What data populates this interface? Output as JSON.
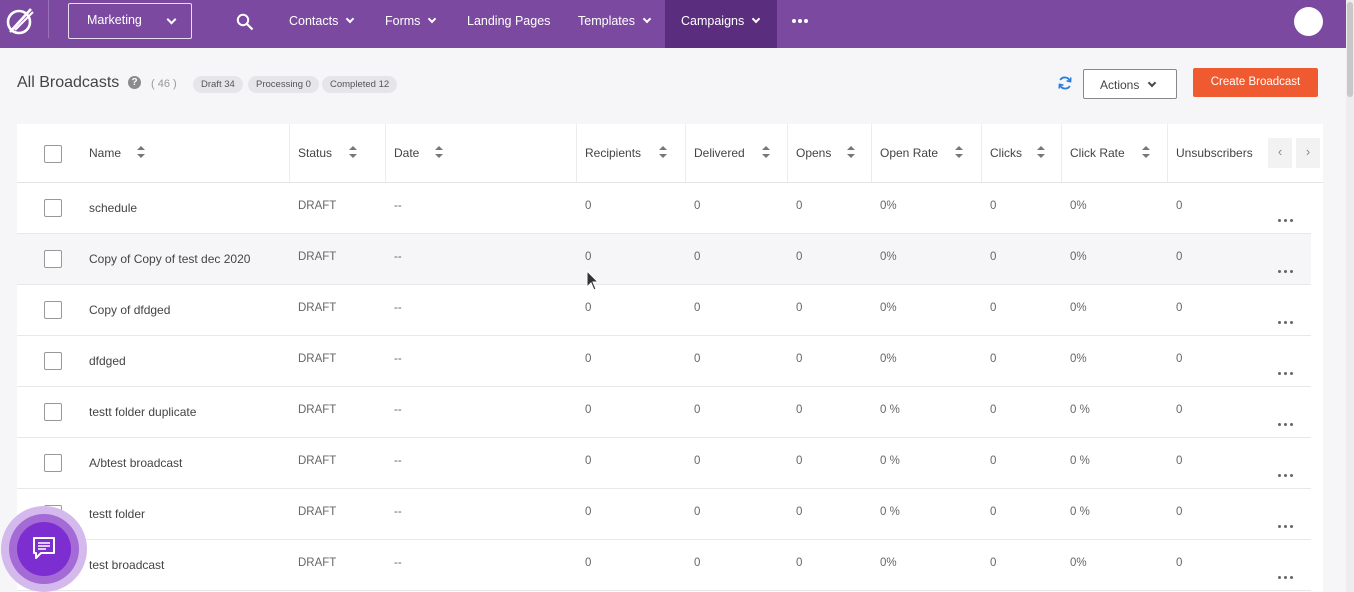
{
  "nav": {
    "workspace": "Marketing",
    "items": [
      {
        "label": "Contacts",
        "dropdown": true
      },
      {
        "label": "Forms",
        "dropdown": true
      },
      {
        "label": "Landing Pages",
        "dropdown": false
      },
      {
        "label": "Templates",
        "dropdown": true
      },
      {
        "label": "Campaigns",
        "dropdown": true,
        "active": true
      }
    ],
    "accent": "#7b4aa0",
    "active_bg": "#5b2d7e"
  },
  "header": {
    "title": "All Broadcasts",
    "help": "?",
    "count": "( 46 )",
    "pills": [
      "Draft 34",
      "Processing 0",
      "Completed 12"
    ],
    "actions_label": "Actions",
    "create_label": "Create Broadcast",
    "create_color": "#f05a30"
  },
  "table": {
    "columns": [
      "Name",
      "Status",
      "Date",
      "Recipients",
      "Delivered",
      "Opens",
      "Open Rate",
      "Clicks",
      "Click Rate",
      "Unsubscribers"
    ],
    "scroll_left": "‹",
    "scroll_right": "›",
    "rows": [
      {
        "name": "schedule",
        "status": "DRAFT",
        "date": "--",
        "recipients": "0",
        "delivered": "0",
        "opens": "0",
        "open_rate": "0%",
        "clicks": "0",
        "click_rate": "0%",
        "unsubscribers": "0"
      },
      {
        "name": "Copy of Copy of test dec 2020",
        "status": "DRAFT",
        "date": "--",
        "recipients": "0",
        "delivered": "0",
        "opens": "0",
        "open_rate": "0%",
        "clicks": "0",
        "click_rate": "0%",
        "unsubscribers": "0"
      },
      {
        "name": "Copy of dfdged",
        "status": "DRAFT",
        "date": "--",
        "recipients": "0",
        "delivered": "0",
        "opens": "0",
        "open_rate": "0%",
        "clicks": "0",
        "click_rate": "0%",
        "unsubscribers": "0"
      },
      {
        "name": "dfdged",
        "status": "DRAFT",
        "date": "--",
        "recipients": "0",
        "delivered": "0",
        "opens": "0",
        "open_rate": "0%",
        "clicks": "0",
        "click_rate": "0%",
        "unsubscribers": "0"
      },
      {
        "name": "testt folder duplicate",
        "status": "DRAFT",
        "date": "--",
        "recipients": "0",
        "delivered": "0",
        "opens": "0",
        "open_rate": "0 %",
        "clicks": "0",
        "click_rate": "0 %",
        "unsubscribers": "0"
      },
      {
        "name": "A/btest broadcast",
        "status": "DRAFT",
        "date": "--",
        "recipients": "0",
        "delivered": "0",
        "opens": "0",
        "open_rate": "0 %",
        "clicks": "0",
        "click_rate": "0 %",
        "unsubscribers": "0"
      },
      {
        "name": "testt folder",
        "status": "DRAFT",
        "date": "--",
        "recipients": "0",
        "delivered": "0",
        "opens": "0",
        "open_rate": "0 %",
        "clicks": "0",
        "click_rate": "0 %",
        "unsubscribers": "0"
      },
      {
        "name": "test broadcast",
        "status": "DRAFT",
        "date": "--",
        "recipients": "0",
        "delivered": "0",
        "opens": "0",
        "open_rate": "0%",
        "clicks": "0",
        "click_rate": "0%",
        "unsubscribers": "0"
      }
    ]
  },
  "icons": {
    "logo": "brand-logo-icon",
    "search": "search-icon",
    "more": "more-horizontal-icon",
    "refresh": "refresh-icon",
    "chat": "chat-icon"
  }
}
